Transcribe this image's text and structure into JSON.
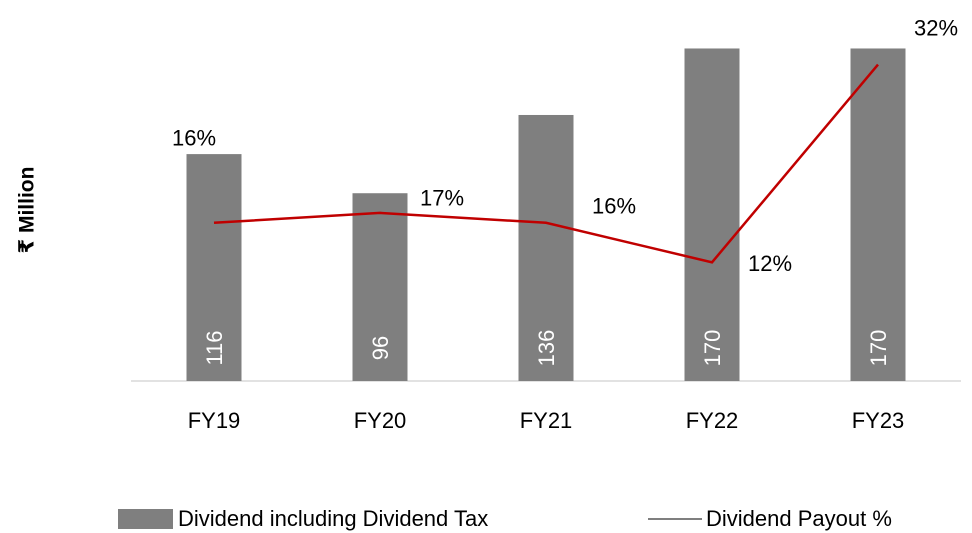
{
  "chart_data": {
    "type": "bar-line",
    "y_label": "₹ Million",
    "categories": [
      "FY19",
      "FY20",
      "FY21",
      "FY22",
      "FY23"
    ],
    "series": [
      {
        "name": "Dividend including Dividend Tax",
        "type": "bar",
        "color": "#7f7f7f",
        "values": [
          116,
          96,
          136,
          170,
          170
        ]
      },
      {
        "name": "Dividend Payout %",
        "type": "line",
        "axis": "y2",
        "color": "#c00000",
        "values": [
          16,
          17,
          16,
          12,
          32
        ],
        "value_labels": [
          "16%",
          "17%",
          "16%",
          "12%",
          "32%"
        ]
      }
    ],
    "ylim": [
      0,
      182
    ],
    "y2lim": [
      0,
      36
    ],
    "grid": false,
    "legend": "bottom"
  }
}
